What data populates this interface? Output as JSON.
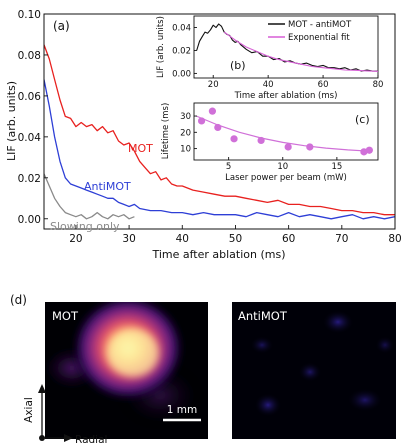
{
  "chart_data": [
    {
      "type": "line",
      "panel": "(a)",
      "xlabel": "Time after ablation (ms)",
      "ylabel": "LIF (arb. units)",
      "xlim": [
        14,
        80
      ],
      "ylim": [
        -0.005,
        0.1
      ],
      "xticks": [
        20,
        30,
        40,
        50,
        60,
        70,
        80
      ],
      "yticks": [
        0.0,
        0.02,
        0.04,
        0.06,
        0.08,
        0.1
      ],
      "xtick_labels": [
        "20",
        "30",
        "40",
        "50",
        "60",
        "70",
        "80"
      ],
      "ytick_labels": [
        "0.00",
        "0.02",
        "0.04",
        "0.06",
        "0.08",
        "0.10"
      ],
      "series": [
        {
          "name": "MOT",
          "color": "#e8211f",
          "x": [
            14,
            15,
            16,
            17,
            18,
            19,
            20,
            21,
            22,
            23,
            24,
            25,
            26,
            27,
            28,
            29,
            30,
            31,
            32,
            33,
            34,
            35,
            36,
            37,
            38,
            39,
            40,
            42,
            44,
            46,
            48,
            50,
            52,
            54,
            56,
            58,
            60,
            62,
            64,
            66,
            68,
            70,
            72,
            74,
            76,
            78,
            80
          ],
          "y": [
            0.085,
            0.078,
            0.068,
            0.058,
            0.05,
            0.049,
            0.045,
            0.047,
            0.045,
            0.046,
            0.043,
            0.045,
            0.042,
            0.043,
            0.038,
            0.036,
            0.037,
            0.033,
            0.028,
            0.025,
            0.022,
            0.023,
            0.019,
            0.02,
            0.017,
            0.016,
            0.016,
            0.014,
            0.013,
            0.012,
            0.011,
            0.011,
            0.01,
            0.009,
            0.008,
            0.009,
            0.007,
            0.007,
            0.006,
            0.006,
            0.005,
            0.004,
            0.004,
            0.003,
            0.003,
            0.002,
            0.002
          ]
        },
        {
          "name": "AntiMOT",
          "color": "#2e3fd6",
          "x": [
            14,
            15,
            16,
            17,
            18,
            19,
            20,
            21,
            22,
            23,
            24,
            25,
            26,
            27,
            28,
            29,
            30,
            31,
            32,
            34,
            36,
            38,
            40,
            42,
            44,
            46,
            48,
            50,
            52,
            54,
            56,
            58,
            60,
            62,
            64,
            66,
            68,
            70,
            72,
            74,
            76,
            78,
            80
          ],
          "y": [
            0.068,
            0.055,
            0.04,
            0.028,
            0.02,
            0.017,
            0.016,
            0.015,
            0.014,
            0.013,
            0.012,
            0.011,
            0.01,
            0.01,
            0.008,
            0.007,
            0.006,
            0.007,
            0.005,
            0.004,
            0.004,
            0.003,
            0.003,
            0.002,
            0.003,
            0.002,
            0.002,
            0.002,
            0.001,
            0.003,
            0.002,
            0.001,
            0.003,
            0.001,
            0.002,
            0.001,
            0.0,
            0.001,
            0.002,
            0.0,
            0.001,
            0.0,
            0.001
          ]
        },
        {
          "name": "Slowing only",
          "color": "#8a8a8a",
          "x": [
            14,
            15,
            16,
            17,
            18,
            19,
            20,
            21,
            22,
            23,
            24,
            25,
            26,
            27,
            28,
            29,
            30,
            31
          ],
          "y": [
            0.022,
            0.016,
            0.01,
            0.006,
            0.003,
            0.002,
            0.001,
            0.002,
            0.0,
            0.001,
            0.003,
            0.001,
            0.0,
            0.002,
            0.001,
            0.002,
            0.0,
            0.001
          ]
        }
      ],
      "annotations": [
        "MOT",
        "AntiMOT",
        "Slowing only"
      ]
    },
    {
      "type": "line",
      "panel": "(b)",
      "xlabel": "Time after ablation (ms)",
      "ylabel": "LIF (arb. units)",
      "xlim": [
        13,
        80
      ],
      "ylim": [
        -0.004,
        0.05
      ],
      "xticks": [
        20,
        40,
        60,
        80
      ],
      "yticks": [
        0.0,
        0.02,
        0.04
      ],
      "xtick_labels": [
        "20",
        "40",
        "60",
        "80"
      ],
      "ytick_labels": [
        "0.00",
        "0.02",
        "0.04"
      ],
      "legend": {
        "placement": "top-right",
        "entries": [
          "MOT - antiMOT",
          "Exponential fit"
        ]
      },
      "series": [
        {
          "name": "MOT - antiMOT",
          "color": "#111111",
          "x": [
            14,
            15,
            16,
            17,
            18,
            19,
            20,
            21,
            22,
            23,
            24,
            25,
            26,
            27,
            28,
            29,
            30,
            32,
            34,
            36,
            38,
            40,
            42,
            44,
            46,
            48,
            50,
            52,
            54,
            56,
            58,
            60,
            62,
            64,
            66,
            68,
            70,
            72,
            74,
            76,
            78,
            80
          ],
          "y": [
            0.02,
            0.028,
            0.032,
            0.036,
            0.035,
            0.038,
            0.042,
            0.04,
            0.043,
            0.041,
            0.036,
            0.034,
            0.033,
            0.029,
            0.027,
            0.028,
            0.025,
            0.021,
            0.018,
            0.019,
            0.015,
            0.015,
            0.012,
            0.013,
            0.01,
            0.011,
            0.009,
            0.008,
            0.009,
            0.007,
            0.006,
            0.007,
            0.005,
            0.005,
            0.004,
            0.005,
            0.003,
            0.004,
            0.002,
            0.003,
            0.002,
            0.002
          ]
        },
        {
          "name": "Exponential fit",
          "color": "#d75fd6",
          "x": [
            24,
            28,
            32,
            36,
            40,
            44,
            48,
            52,
            56,
            60,
            64,
            68,
            72,
            76,
            80
          ],
          "y": [
            0.036,
            0.029,
            0.023,
            0.019,
            0.015,
            0.012,
            0.01,
            0.008,
            0.006,
            0.005,
            0.004,
            0.003,
            0.0027,
            0.0022,
            0.0018
          ]
        }
      ]
    },
    {
      "type": "scatter",
      "panel": "(c)",
      "xlabel": "Laser power per beam (mW)",
      "ylabel": "Lifetime (ms)",
      "xlim": [
        1.8,
        18.8
      ],
      "ylim": [
        3,
        38
      ],
      "xticks": [
        5,
        10,
        15
      ],
      "yticks": [
        10,
        20,
        30
      ],
      "xtick_labels": [
        "5",
        "10",
        "15"
      ],
      "ytick_labels": [
        "10",
        "20",
        "30"
      ],
      "series": [
        {
          "name": "",
          "color": "#d070d8",
          "x": [
            2.5,
            3.5,
            4.0,
            5.5,
            8.0,
            10.5,
            12.5,
            17.5,
            18.0
          ],
          "y": [
            27,
            33,
            23,
            16,
            15,
            11,
            11,
            8,
            9
          ]
        }
      ],
      "fit": {
        "color": "#d070d8",
        "x": [
          2.0,
          4.0,
          6.0,
          8.0,
          10.0,
          12.0,
          14.0,
          16.0,
          18.0
        ],
        "y": [
          30,
          24.5,
          20,
          16.5,
          13.8,
          11.8,
          10.3,
          9.2,
          8.4
        ]
      }
    }
  ],
  "panel_d": {
    "label": "(d)",
    "mot_label": "MOT",
    "antimot_label": "AntiMOT",
    "scalebar_label": "1 mm",
    "axis_vertical": "Axial",
    "axis_horizontal": "Radial",
    "colormap": [
      "#000004",
      "#3b0f70",
      "#8c2981",
      "#de4968",
      "#fe9f6d",
      "#fcfdbf"
    ]
  }
}
